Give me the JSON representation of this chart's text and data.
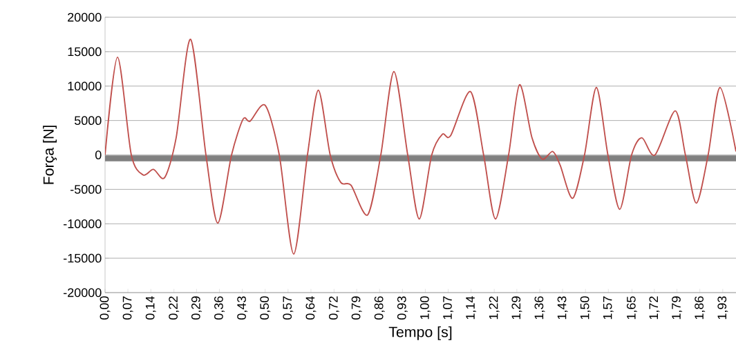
{
  "chart_data": {
    "type": "line",
    "xlabel": "Tempo [s]",
    "ylabel": "Força [N]",
    "x": [
      0,
      0.039,
      0.082,
      0.119,
      0.151,
      0.186,
      0.222,
      0.267,
      0.315,
      0.352,
      0.395,
      0.431,
      0.453,
      0.5,
      0.544,
      0.589,
      0.632,
      0.666,
      0.703,
      0.736,
      0.768,
      0.82,
      0.861,
      0.902,
      0.945,
      0.981,
      1.02,
      1.053,
      1.079,
      1.141,
      1.182,
      1.219,
      1.26,
      1.294,
      1.333,
      1.365,
      1.398,
      1.421,
      1.46,
      1.497,
      1.534,
      1.57,
      1.607,
      1.644,
      1.676,
      1.717,
      1.78,
      1.812,
      1.846,
      1.883,
      1.92,
      1.97
    ],
    "series": [
      {
        "color": "#c0504d",
        "values": [
          0,
          14200,
          0,
          -2900,
          -2100,
          -3300,
          2500,
          16800,
          0,
          -9900,
          0,
          5200,
          4900,
          7200,
          0,
          -14400,
          0,
          9400,
          0,
          -4000,
          -4400,
          -8700,
          0,
          12100,
          0,
          -9300,
          0,
          3000,
          2800,
          9200,
          0,
          -9300,
          0,
          10200,
          2500,
          -600,
          500,
          -1500,
          -6300,
          0,
          9800,
          0,
          -7900,
          0,
          2500,
          0,
          6400,
          0,
          -7000,
          0,
          9800,
          500
        ]
      }
    ],
    "xlim": [
      0,
      1.97
    ],
    "ylim": [
      -20000,
      20000
    ],
    "yticks": [
      -20000,
      -15000,
      -10000,
      -5000,
      0,
      5000,
      10000,
      15000,
      20000
    ],
    "xticks": [
      {
        "value": 0,
        "label": "0,00"
      },
      {
        "value": 0.0714,
        "label": "0,07"
      },
      {
        "value": 0.1429,
        "label": "0,14"
      },
      {
        "value": 0.2151,
        "label": "0,22"
      },
      {
        "value": 0.2857,
        "label": "0,29"
      },
      {
        "value": 0.3571,
        "label": "0,36"
      },
      {
        "value": 0.4286,
        "label": "0,43"
      },
      {
        "value": 0.5,
        "label": "0,50"
      },
      {
        "value": 0.5714,
        "label": "0,57"
      },
      {
        "value": 0.6429,
        "label": "0,64"
      },
      {
        "value": 0.7151,
        "label": "0,72"
      },
      {
        "value": 0.7857,
        "label": "0,79"
      },
      {
        "value": 0.8571,
        "label": "0,86"
      },
      {
        "value": 0.9286,
        "label": "0,93"
      },
      {
        "value": 1.0,
        "label": "1,00"
      },
      {
        "value": 1.0714,
        "label": "1,07"
      },
      {
        "value": 1.1429,
        "label": "1,14"
      },
      {
        "value": 1.2151,
        "label": "1,22"
      },
      {
        "value": 1.2857,
        "label": "1,29"
      },
      {
        "value": 1.3571,
        "label": "1,36"
      },
      {
        "value": 1.4286,
        "label": "1,43"
      },
      {
        "value": 1.5,
        "label": "1,50"
      },
      {
        "value": 1.5714,
        "label": "1,57"
      },
      {
        "value": 1.6451,
        "label": "1,65"
      },
      {
        "value": 1.7151,
        "label": "1,72"
      },
      {
        "value": 1.7857,
        "label": "1,79"
      },
      {
        "value": 1.8571,
        "label": "1,86"
      },
      {
        "value": 1.9286,
        "label": "1,93"
      }
    ],
    "grid": "y",
    "ref_lines": [
      {
        "axis": "y",
        "value": -500,
        "color": "#808080"
      }
    ]
  }
}
